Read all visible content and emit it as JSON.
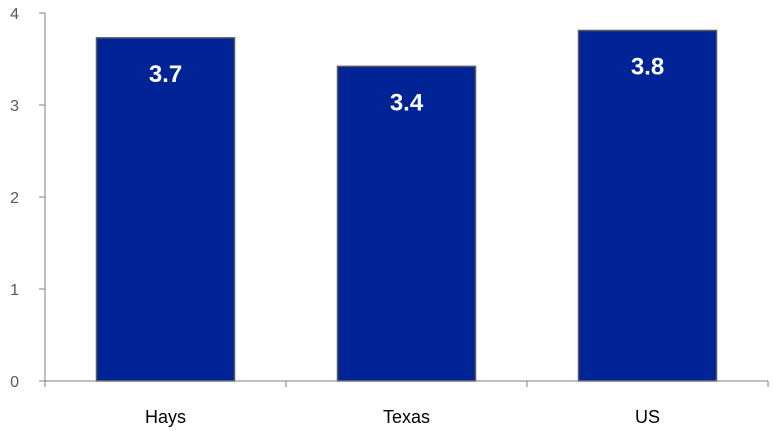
{
  "chart_data": {
    "type": "bar",
    "categories": [
      "Hays",
      "Texas",
      "US"
    ],
    "values": [
      3.73,
      3.42,
      3.81
    ],
    "data_labels": [
      "3.7",
      "3.4",
      "3.8"
    ],
    "title": "",
    "xlabel": "",
    "ylabel": "",
    "ylim": [
      0,
      4
    ],
    "yticks": [
      "0",
      "1",
      "2",
      "3",
      "4"
    ],
    "grid": false,
    "legend": "none",
    "colors": {
      "bar": "#002395",
      "bar_edge": "#5a5a5a",
      "axis": "#7f7f7f"
    }
  }
}
